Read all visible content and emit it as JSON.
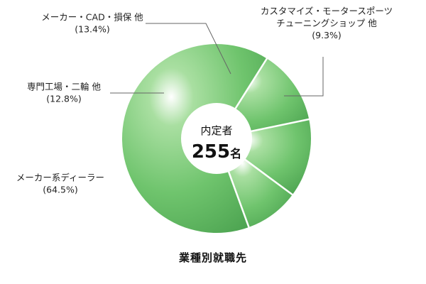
{
  "chart_data": {
    "type": "pie",
    "caption": "業種別就職先",
    "center_label": "内定者",
    "center_value": "255",
    "center_unit": "名",
    "colors": {
      "slice_light": "#a9dfa1",
      "slice_mid": "#6fc46d",
      "slice_dark": "#4ea552",
      "divider": "#ffffff",
      "leader": "#666666"
    },
    "slices": [
      {
        "label_lines": [
          "メーカー系ディーラー"
        ],
        "percent_text": "(64.5%)",
        "value": 64.5
      },
      {
        "label_lines": [
          "専門工場・二輪 他"
        ],
        "percent_text": "(12.8%)",
        "value": 12.8
      },
      {
        "label_lines": [
          "メーカー・CAD・損保 他"
        ],
        "percent_text": "(13.4%)",
        "value": 13.4
      },
      {
        "label_lines": [
          "カスタマイズ・モータースポーツ",
          "チューニングショップ 他"
        ],
        "percent_text": "(9.3%)",
        "value": 9.3
      }
    ]
  }
}
